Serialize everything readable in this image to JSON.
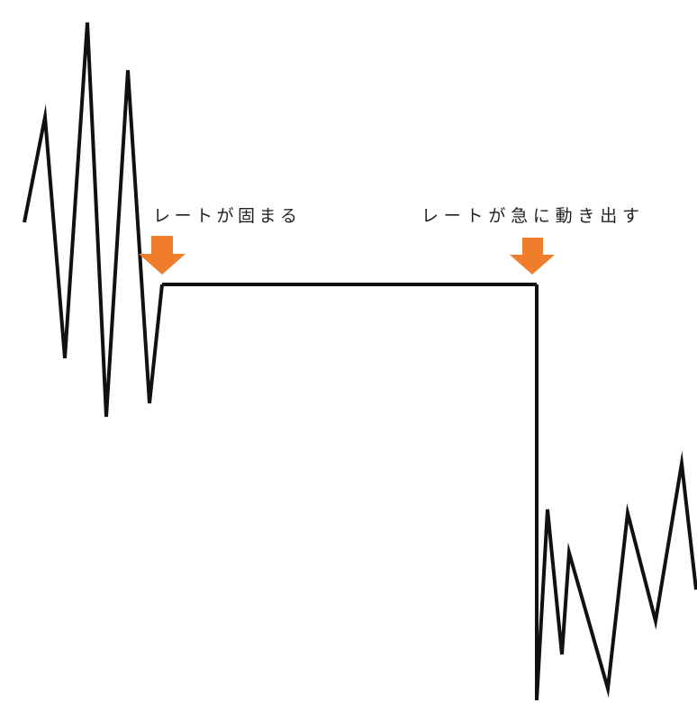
{
  "labels": {
    "rate_freeze": "レートが固まる",
    "rate_move": "レートが急に動き出す"
  },
  "colors": {
    "background": "#ffffff",
    "line": "#111111",
    "arrow": "#f07d2b",
    "text": "#222222"
  },
  "icons": {
    "freeze_marker": "arrow-down-icon",
    "move_marker": "arrow-down-icon"
  }
}
